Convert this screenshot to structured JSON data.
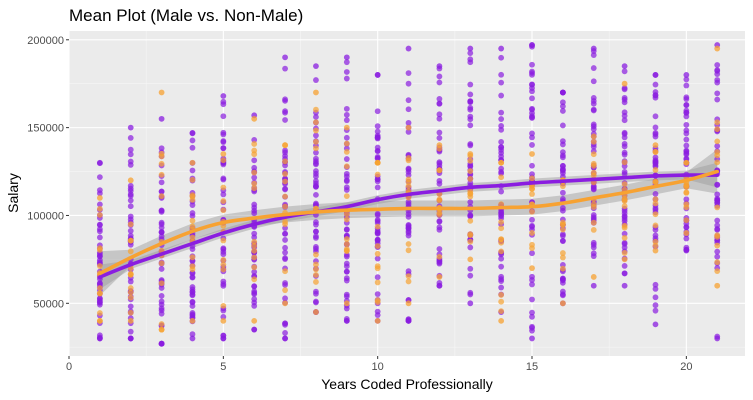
{
  "chart_data": {
    "type": "scatter",
    "title": "Mean Plot (Male vs. Non-Male)",
    "xlabel": "Years Coded Professionally",
    "ylabel": "Salary",
    "xlim": [
      0,
      21.9
    ],
    "ylim": [
      20000,
      205000
    ],
    "x_ticks": [
      0,
      5,
      10,
      15,
      20
    ],
    "x_tick_labels": [
      "0",
      "5",
      "10",
      "15",
      "20"
    ],
    "y_ticks": [
      50000,
      100000,
      150000,
      200000
    ],
    "y_tick_labels": [
      "50000",
      "100000",
      "150000",
      "200000"
    ],
    "grid": true,
    "legend": "none",
    "colors": {
      "panel_bg": "#ebebeb",
      "grid": "#ffffff",
      "male": "#8a1de0",
      "non_male": "#f7a232",
      "ribbon": "#999999"
    },
    "series": [
      {
        "key": "male",
        "color": "#8a1de0",
        "columns": [
          {
            "x": 1,
            "min": 30000,
            "max": 130000
          },
          {
            "x": 2,
            "min": 30000,
            "max": 150000
          },
          {
            "x": 3,
            "min": 27000,
            "max": 155000
          },
          {
            "x": 4,
            "min": 30000,
            "max": 147000
          },
          {
            "x": 5,
            "min": 30000,
            "max": 168000
          },
          {
            "x": 6,
            "min": 35000,
            "max": 157000
          },
          {
            "x": 7,
            "min": 30000,
            "max": 190000
          },
          {
            "x": 8,
            "min": 45000,
            "max": 185000
          },
          {
            "x": 9,
            "min": 40000,
            "max": 190000
          },
          {
            "x": 10,
            "min": 40000,
            "max": 180000
          },
          {
            "x": 11,
            "min": 40000,
            "max": 195000
          },
          {
            "x": 12,
            "min": 60000,
            "max": 185000
          },
          {
            "x": 13,
            "min": 50000,
            "max": 195000
          },
          {
            "x": 14,
            "min": 45000,
            "max": 195000
          },
          {
            "x": 15,
            "min": 30000,
            "max": 197000
          },
          {
            "x": 16,
            "min": 50000,
            "max": 170000
          },
          {
            "x": 17,
            "min": 60000,
            "max": 195000
          },
          {
            "x": 18,
            "min": 60000,
            "max": 185000
          },
          {
            "x": 19,
            "min": 38000,
            "max": 180000
          },
          {
            "x": 20,
            "min": 80000,
            "max": 180000
          },
          {
            "x": 21,
            "min": 30000,
            "max": 197000
          }
        ],
        "mean_curve": {
          "x": [
            1,
            2,
            3,
            4,
            5,
            6,
            7,
            8,
            9,
            10,
            11,
            12,
            13,
            14,
            15,
            16,
            17,
            18,
            19,
            20,
            21
          ],
          "y": [
            65000,
            72000,
            78000,
            84000,
            90000,
            95000,
            99000,
            102000,
            105000,
            109000,
            112000,
            114000,
            116000,
            117000,
            118500,
            119500,
            120500,
            121500,
            122500,
            123000,
            123000
          ]
        }
      },
      {
        "key": "non_male",
        "color": "#f7a232",
        "columns": [
          {
            "x": 1,
            "min": 40000,
            "max": 110000
          },
          {
            "x": 2,
            "min": 40000,
            "max": 120000
          },
          {
            "x": 3,
            "min": 35000,
            "max": 170000
          },
          {
            "x": 4,
            "min": 40000,
            "max": 130000
          },
          {
            "x": 5,
            "min": 40000,
            "max": 135000
          },
          {
            "x": 6,
            "min": 40000,
            "max": 155000
          },
          {
            "x": 7,
            "min": 50000,
            "max": 140000
          },
          {
            "x": 8,
            "min": 45000,
            "max": 170000
          },
          {
            "x": 9,
            "min": 50000,
            "max": 150000
          },
          {
            "x": 10,
            "min": 40000,
            "max": 130000
          },
          {
            "x": 11,
            "min": 50000,
            "max": 150000
          },
          {
            "x": 12,
            "min": 65000,
            "max": 140000
          },
          {
            "x": 13,
            "min": 75000,
            "max": 135000
          },
          {
            "x": 14,
            "min": 40000,
            "max": 130000
          },
          {
            "x": 15,
            "min": 70000,
            "max": 135000
          },
          {
            "x": 16,
            "min": 50000,
            "max": 120000
          },
          {
            "x": 17,
            "min": 65000,
            "max": 145000
          },
          {
            "x": 18,
            "min": 75000,
            "max": 175000
          },
          {
            "x": 19,
            "min": 80000,
            "max": 140000
          },
          {
            "x": 20,
            "min": 90000,
            "max": 130000
          },
          {
            "x": 21,
            "min": 60000,
            "max": 195000
          }
        ],
        "mean_curve": {
          "x": [
            1,
            2,
            3,
            4,
            5,
            6,
            7,
            8,
            9,
            10,
            11,
            12,
            13,
            14,
            15,
            16,
            17,
            18,
            19,
            20,
            21
          ],
          "y": [
            67000,
            76000,
            84000,
            91000,
            96000,
            98500,
            100500,
            102000,
            103000,
            103500,
            104000,
            104000,
            104000,
            104500,
            105000,
            107000,
            110000,
            113000,
            116500,
            120000,
            125000
          ]
        }
      }
    ]
  }
}
